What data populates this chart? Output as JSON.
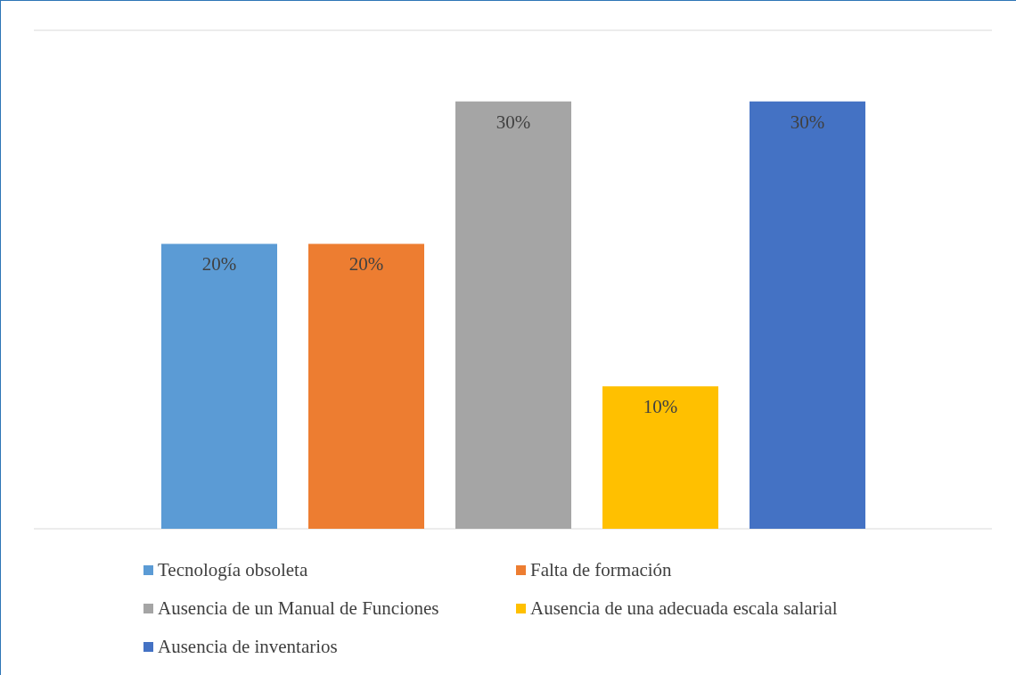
{
  "chart_data": {
    "type": "bar",
    "categories": [
      null
    ],
    "series": [
      {
        "name": "Tecnología obsoleta",
        "color": "#5b9bd5",
        "values": [
          20
        ],
        "value_labels": [
          "20%"
        ]
      },
      {
        "name": "Falta de formación",
        "color": "#ed7d31",
        "values": [
          20
        ],
        "value_labels": [
          "20%"
        ]
      },
      {
        "name": "Ausencia de un Manual de Funciones",
        "color": "#a5a5a5",
        "values": [
          30
        ],
        "value_labels": [
          "30%"
        ]
      },
      {
        "name": "Ausencia de una adecuada escala salarial",
        "color": "#ffc000",
        "values": [
          10
        ],
        "value_labels": [
          "10%"
        ]
      },
      {
        "name": "Ausencia de inventarios",
        "color": "#4472c4",
        "values": [
          30
        ],
        "value_labels": [
          "30%"
        ]
      }
    ],
    "ylim": [
      0,
      35
    ],
    "grid": "y",
    "legend": "bottom"
  }
}
